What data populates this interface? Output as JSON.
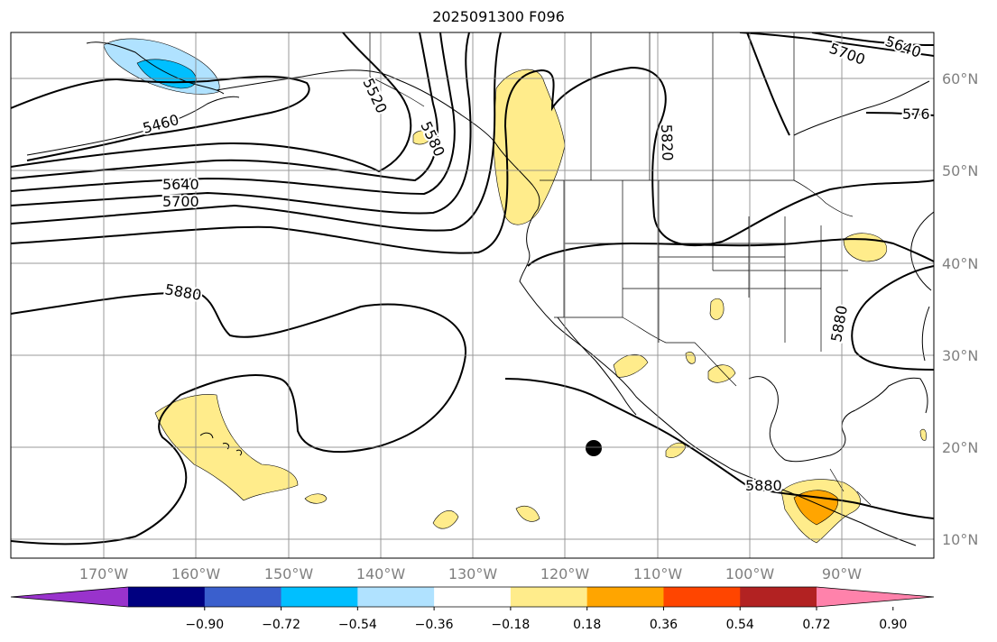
{
  "title": "2025091300 F096",
  "map": {
    "projection": "cylindrical",
    "lon_range": [
      -180,
      -80
    ],
    "lat_range": [
      8,
      65
    ],
    "lon_ticks": [
      "170°W",
      "160°W",
      "150°W",
      "140°W",
      "130°W",
      "120°W",
      "110°W",
      "100°W",
      "90°W"
    ],
    "lat_ticks": [
      "60°N",
      "50°N",
      "40°N",
      "30°N",
      "20°N",
      "10°N"
    ],
    "gridlines": true,
    "contour_color": "#000000",
    "contour_labels": [
      "5460",
      "5520",
      "5580",
      "5640",
      "5700",
      "5820",
      "5880",
      "5880",
      "5880",
      "5640",
      "5700",
      "576"
    ],
    "marker": {
      "name": "storm-center",
      "lon": -116.5,
      "lat": 20,
      "color": "#000000"
    }
  },
  "colorbar": {
    "colors": [
      "#9933cc",
      "#000080",
      "#3a5fcd",
      "#00bfff",
      "#b0e2ff",
      "#ffffff",
      "#ffec8b",
      "#ffa500",
      "#ff4500",
      "#b22222",
      "#ff82ab"
    ],
    "labels": [
      "−0.90",
      "−0.72",
      "−0.54",
      "−0.36",
      "−0.18",
      "0.18",
      "0.36",
      "0.54",
      "0.72",
      "0.90"
    ],
    "extend": "both"
  }
}
